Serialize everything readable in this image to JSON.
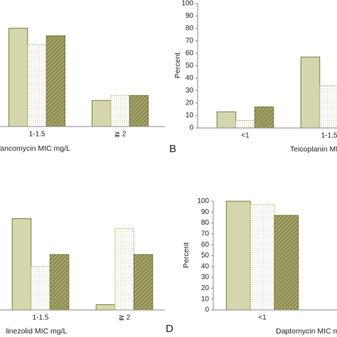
{
  "chart_data": [
    {
      "type": "bar",
      "xlabel": "Vancomycin MIC mg/L",
      "categories": [
        "1-1.5",
        "≧ 2"
      ],
      "series": [
        {
          "color": "#d6d6ad",
          "pattern": "solid",
          "values": [
            79,
            21
          ]
        },
        {
          "color": "#c9c9a0",
          "pattern": "dots",
          "values": [
            66,
            25
          ]
        },
        {
          "color": "#8f8f52",
          "pattern": "hatch",
          "values": [
            73,
            25
          ]
        }
      ],
      "ylim": [
        0,
        100
      ]
    },
    {
      "type": "bar",
      "label": "B",
      "ylabel": "Percent",
      "xlabel": "Teicoplanin MIC mg/L",
      "categories": [
        "<1",
        "1-1.5"
      ],
      "series": [
        {
          "color": "#d6d6ad",
          "pattern": "solid",
          "values": [
            13,
            57
          ]
        },
        {
          "color": "#c9c9a0",
          "pattern": "dots",
          "values": [
            6,
            34
          ]
        },
        {
          "color": "#8f8f52",
          "pattern": "hatch",
          "values": [
            17,
            null
          ]
        }
      ],
      "ylim": [
        0,
        100
      ],
      "yticks": [
        0,
        10,
        20,
        30,
        40,
        50,
        60,
        70,
        80,
        90,
        100
      ]
    },
    {
      "type": "bar",
      "xlabel": "linezolid MIC mg/L",
      "categories": [
        "1-1.5",
        "≧ 2"
      ],
      "series": [
        {
          "color": "#d6d6ad",
          "pattern": "solid",
          "values": [
            84,
            5
          ]
        },
        {
          "color": "#c9c9a0",
          "pattern": "dots",
          "values": [
            40,
            75
          ]
        },
        {
          "color": "#8f8f52",
          "pattern": "hatch",
          "values": [
            51,
            51
          ]
        }
      ],
      "ylim": [
        0,
        100
      ]
    },
    {
      "type": "bar",
      "label": "D",
      "ylabel": "Percent",
      "xlabel": "Daptomycin MIC mg/L",
      "categories": [
        "<1"
      ],
      "series": [
        {
          "color": "#d6d6ad",
          "pattern": "solid",
          "values": [
            100
          ]
        },
        {
          "color": "#c9c9a0",
          "pattern": "dots",
          "values": [
            97
          ]
        },
        {
          "color": "#8f8f52",
          "pattern": "hatch",
          "values": [
            87
          ]
        }
      ],
      "ylim": [
        0,
        100
      ],
      "yticks": [
        0,
        10,
        20,
        30,
        40,
        50,
        60,
        70,
        80,
        90,
        100
      ]
    }
  ]
}
